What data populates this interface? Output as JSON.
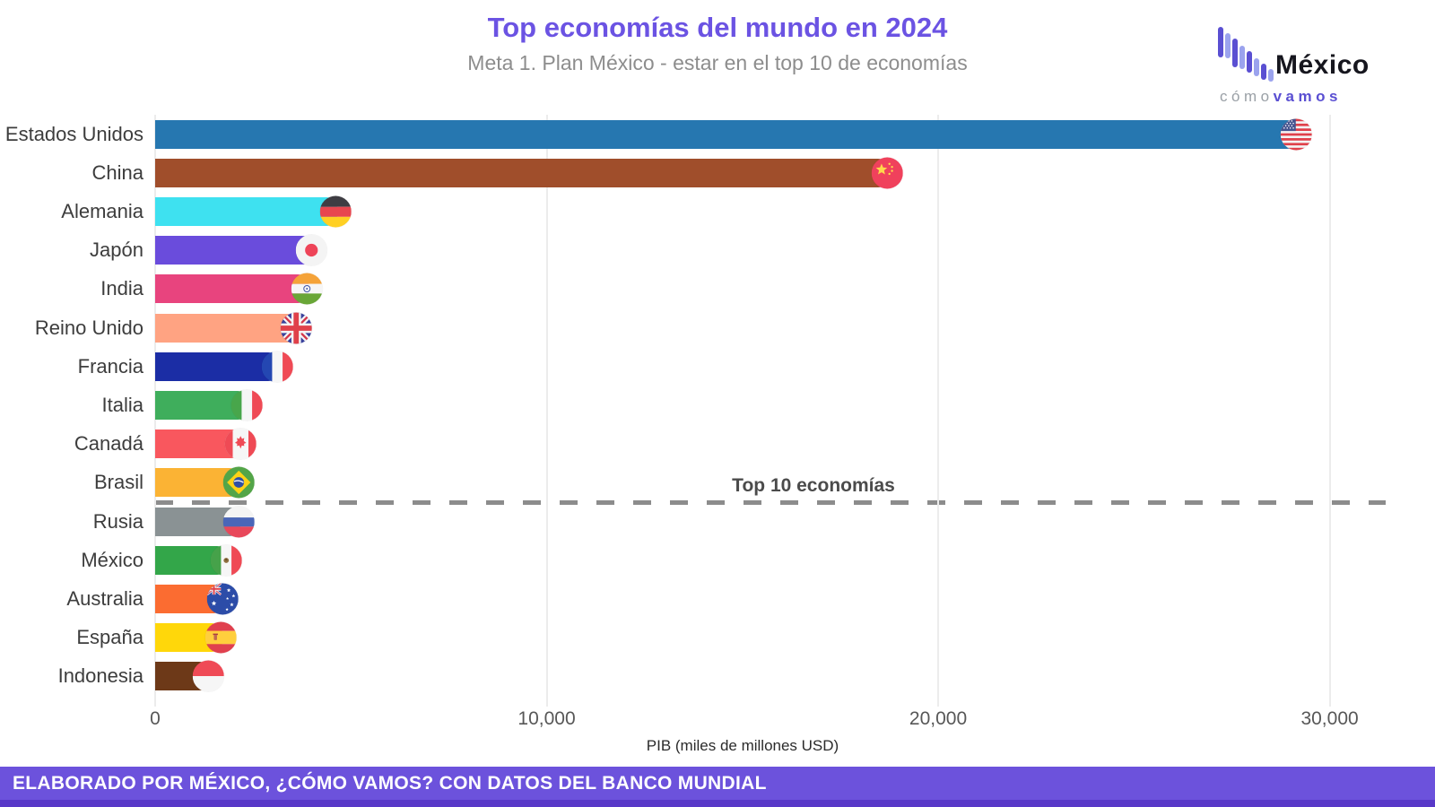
{
  "header": {
    "title": "Top economías del mundo en 2024",
    "subtitle": "Meta 1. Plan México - estar en el top 10 de economías"
  },
  "logo": {
    "name": "México",
    "tagline_1": "cómo",
    "tagline_2": "vamos"
  },
  "chart_data": {
    "type": "bar",
    "orientation": "horizontal",
    "title": "Top economías del mundo en 2024",
    "subtitle": "Meta 1. Plan México - estar en el top 10 de economías",
    "xlabel": "PIB (miles de millones USD)",
    "xlim": [
      0,
      31430
    ],
    "xticks": [
      0,
      10000,
      20000,
      30000
    ],
    "xtick_labels": [
      "0",
      "10,000",
      "20,000",
      "30,000"
    ],
    "grid": "vertical-light",
    "legend": "none",
    "annotation": {
      "label": "Top 10 economías",
      "after_rank": 10
    },
    "categories": [
      "Estados Unidos",
      "China",
      "Alemania",
      "Japón",
      "India",
      "Reino Unido",
      "Francia",
      "Italia",
      "Canadá",
      "Brasil",
      "Rusia",
      "México",
      "Australia",
      "España",
      "Indonesia"
    ],
    "values": [
      29185,
      18744,
      4660,
      4026,
      3910,
      3639,
      3162,
      2373,
      2215,
      2179,
      2174,
      1849,
      1753,
      1722,
      1396
    ],
    "bar_colors": [
      "#2677B0",
      "#A04E2B",
      "#3EE1F0",
      "#6A4CDC",
      "#E8447E",
      "#FFA382",
      "#1B2DA5",
      "#3FAE5C",
      "#F9575E",
      "#FBB334",
      "#8A9294",
      "#33A649",
      "#FB6C31",
      "#FFD70A",
      "#6D3918"
    ],
    "flags": [
      "us",
      "cn",
      "de",
      "jp",
      "in",
      "gb",
      "fr",
      "it",
      "ca",
      "br",
      "ru",
      "mx",
      "au",
      "es",
      "id"
    ]
  },
  "footer": {
    "text": "ELABORADO POR MÉXICO, ¿CÓMO VAMOS? CON DATOS DEL BANCO MUNDIAL"
  },
  "theme": {
    "title_color": "#6B53E3",
    "subtitle_color": "#8D8D8D",
    "footer_bg": "#6C52DC",
    "footer_strip": "#5838C8",
    "gridline_color": "#ECECEC",
    "divider_color": "#8C8C8C",
    "label_color": "#3D3D3D"
  }
}
